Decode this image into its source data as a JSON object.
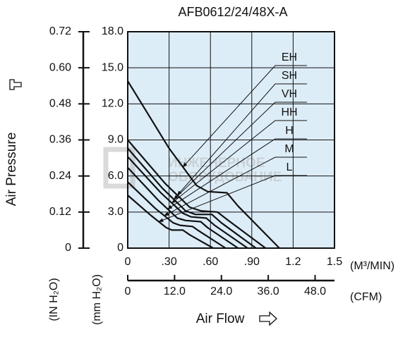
{
  "chart_data": {
    "type": "line",
    "title": "AFB0612/24/48X-A",
    "y_title": "Air Pressure",
    "x_title": "Air Flow",
    "y_unit": "(mm H₂O)",
    "y2_unit": "(IN H₂O)",
    "x_unit": "(M³/MIN)",
    "x2_unit": "(CFM)",
    "watermark": [
      "ИНЖЕНЕРНОЕ",
      "ОБОРУДОВАНИЕ"
    ],
    "background": "#ddedf8",
    "grid": true,
    "xlim": [
      0,
      1.5
    ],
    "xticks": [
      0,
      {
        "value": 0.3,
        "label": ".30"
      },
      {
        "value": 0.6,
        "label": ".60"
      },
      {
        "value": 0.9,
        "label": ".90"
      },
      1.2,
      1.5
    ],
    "x2lim": [
      0,
      52.97
    ],
    "x2ticks": [
      0,
      {
        "value": 12,
        "label": "12.0"
      },
      {
        "value": 24,
        "label": "24.0"
      },
      {
        "value": 36,
        "label": "36.0"
      },
      {
        "value": 48,
        "label": "48.0"
      }
    ],
    "ylim": [
      0,
      18
    ],
    "yticks": [
      0,
      {
        "value": 3,
        "label": "3.0"
      },
      {
        "value": 6,
        "label": "6.0"
      },
      {
        "value": 9,
        "label": "9.0"
      },
      {
        "value": 12,
        "label": "12.0"
      },
      {
        "value": 15,
        "label": "15.0"
      },
      {
        "value": 18,
        "label": "18.0"
      }
    ],
    "y2lim": [
      0,
      0.72
    ],
    "y2ticks": [
      0,
      0.12,
      0.24,
      0.36,
      0.48,
      {
        "value": 0.6,
        "label": "0.60"
      },
      0.72
    ],
    "series": [
      {
        "name": "EH",
        "color": "#111111",
        "x": [
          0,
          0.3,
          0.5,
          0.58,
          0.72,
          0.8,
          1.1
        ],
        "values": [
          13.9,
          8.3,
          5.2,
          4.7,
          4.6,
          3.5,
          0
        ]
      },
      {
        "name": "SH",
        "color": "#111111",
        "x": [
          0,
          0.27,
          0.45,
          0.53,
          0.65,
          0.73,
          1.0
        ],
        "values": [
          9.0,
          5.4,
          3.4,
          3.1,
          3.0,
          2.3,
          0
        ]
      },
      {
        "name": "VH",
        "color": "#111111",
        "x": [
          0,
          0.25,
          0.42,
          0.49,
          0.61,
          0.68,
          0.93
        ],
        "values": [
          8.3,
          5.0,
          3.1,
          2.8,
          2.8,
          2.1,
          0
        ]
      },
      {
        "name": "HH",
        "color": "#111111",
        "x": [
          0,
          0.24,
          0.4,
          0.46,
          0.57,
          0.63,
          0.87
        ],
        "values": [
          7.6,
          4.6,
          2.9,
          2.6,
          2.5,
          1.9,
          0
        ]
      },
      {
        "name": "H",
        "color": "#111111",
        "x": [
          0,
          0.22,
          0.36,
          0.42,
          0.53,
          0.58,
          0.8
        ],
        "values": [
          6.7,
          4.0,
          2.5,
          2.3,
          2.2,
          1.7,
          0
        ]
      },
      {
        "name": "M",
        "color": "#111111",
        "x": [
          0,
          0.2,
          0.33,
          0.38,
          0.47,
          0.52,
          0.71
        ],
        "values": [
          5.5,
          3.3,
          2.1,
          1.9,
          1.8,
          1.4,
          0
        ]
      },
      {
        "name": "L",
        "color": "#111111",
        "x": [
          0,
          0.17,
          0.28,
          0.32,
          0.4,
          0.45,
          0.62
        ],
        "values": [
          4.4,
          2.7,
          1.7,
          1.5,
          1.5,
          1.1,
          0
        ]
      }
    ]
  }
}
